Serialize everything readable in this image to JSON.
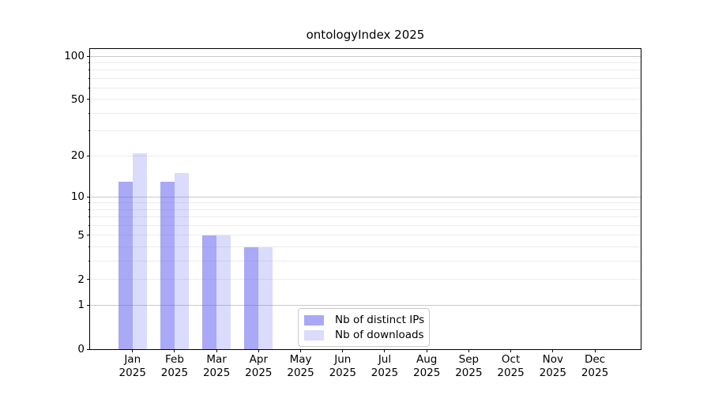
{
  "chart_data": {
    "type": "bar",
    "title": "ontologyIndex 2025",
    "year_label": "2025",
    "categories": [
      "Jan",
      "Feb",
      "Mar",
      "Apr",
      "May",
      "Jun",
      "Jul",
      "Aug",
      "Sep",
      "Oct",
      "Nov",
      "Dec"
    ],
    "series": [
      {
        "name": "Nb of distinct IPs",
        "color": "rgba(90,90,240,0.52)",
        "values": [
          13,
          13,
          5,
          4,
          0,
          0,
          0,
          0,
          0,
          0,
          0,
          0
        ]
      },
      {
        "name": "Nb of downloads",
        "color": "rgba(90,90,240,0.22)",
        "values": [
          21,
          15,
          5,
          4,
          0,
          0,
          0,
          0,
          0,
          0,
          0,
          0
        ]
      }
    ],
    "xlabel": "",
    "ylabel": "",
    "y_axis": {
      "scale": "log10(1+v)",
      "tick_values": [
        100,
        50,
        20,
        10,
        5,
        2,
        1,
        0
      ],
      "major_gridlines": [
        1,
        10,
        100
      ],
      "minor_gridlines": [
        2,
        3,
        4,
        5,
        6,
        7,
        8,
        9,
        20,
        30,
        40,
        50,
        60,
        70,
        80,
        90
      ],
      "max": 112
    },
    "x_axis": {
      "range_note": "12 monthly groups, Jan 2025 - Dec 2025"
    },
    "grid": true,
    "legend": {
      "position": "lower center",
      "entries": [
        "Nb of distinct IPs",
        "Nb of downloads"
      ]
    },
    "colors": {
      "major_grid": "#c9c9c9",
      "minor_grid": "#ececec",
      "spine": "#000000",
      "background": "#ffffff",
      "bar_dark_rendered": "#aaaaf8",
      "bar_light_rendered": "#dbdaf9"
    }
  }
}
